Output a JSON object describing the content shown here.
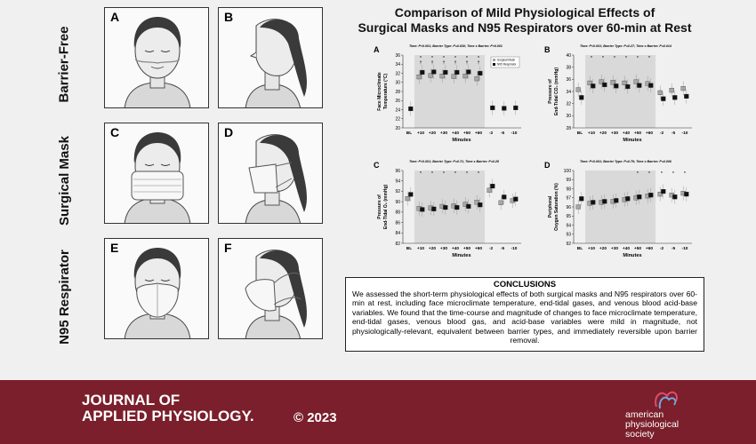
{
  "row_labels": [
    "Barrier-Free",
    "Surgical Mask",
    "N95 Respirator"
  ],
  "photo_labels": [
    "A",
    "B",
    "C",
    "D",
    "E",
    "F"
  ],
  "title_line1": "Comparison of Mild Physiological Effects of",
  "title_line2": "Surgical Masks and N95 Respirators over 60-min at Rest",
  "colors": {
    "footer": "#7a1f2b",
    "shade": "#d9d9d9",
    "surgical": "#a6a6a6",
    "n95": "#111111"
  },
  "chart_data": [
    {
      "type": "scatter",
      "panel": "A",
      "stats": "Time: P<0.001; Barrier Type: P=0.630; Time x Barrier: P<0.001",
      "ylabel_lines": [
        "Face Microclimate",
        "Temperature (°C)"
      ],
      "xlabel": "Minutes",
      "categories": [
        "BL",
        "+10",
        "+20",
        "+30",
        "+40",
        "+50",
        "+60",
        "-2",
        "-5",
        "-10"
      ],
      "ylim": [
        20,
        36
      ],
      "yticks": [
        20,
        22,
        24,
        26,
        28,
        30,
        32,
        34,
        36
      ],
      "shaded_categories": [
        "+10",
        "+60"
      ],
      "stars": [
        "+10",
        "+20",
        "+30",
        "+40",
        "+50",
        "+60"
      ],
      "daggers": [
        "+10",
        "+20",
        "+30",
        "+40",
        "+50",
        "+60"
      ],
      "legend": [
        "Surgical Mask",
        "N95 Respirator"
      ],
      "legend_position": "top-right",
      "series": [
        {
          "name": "Surgical Mask",
          "values": [
            null,
            31.2,
            31.5,
            31.4,
            31.3,
            31.4,
            30.8,
            null,
            null,
            null
          ]
        },
        {
          "name": "N95 Respirator",
          "values": [
            24.2,
            32.2,
            32.3,
            32.2,
            32.2,
            32.3,
            32.0,
            24.4,
            24.3,
            24.4
          ]
        }
      ]
    },
    {
      "type": "scatter",
      "panel": "B",
      "stats": "Time: P<0.001; Barrier Type: P=0.27; Time x Barrier: P=0.014",
      "ylabel_lines": [
        "Pressure of",
        "End-Tidal CO₂ (mmHg)"
      ],
      "xlabel": "Minutes",
      "categories": [
        "BL",
        "+10",
        "+20",
        "+30",
        "+40",
        "+50",
        "+60",
        "-2",
        "-5",
        "-10"
      ],
      "ylim": [
        28,
        40
      ],
      "yticks": [
        28,
        30,
        32,
        34,
        36,
        38,
        40
      ],
      "shaded_categories": [
        "+10",
        "+60"
      ],
      "stars": [
        "+10",
        "+20",
        "+30",
        "+40",
        "+50",
        "+60"
      ],
      "series": [
        {
          "name": "Surgical Mask",
          "values": [
            34.3,
            35.4,
            35.6,
            35.5,
            35.4,
            35.6,
            35.3,
            33.8,
            34.2,
            34.5
          ]
        },
        {
          "name": "N95 Respirator",
          "values": [
            33.0,
            34.9,
            35.1,
            34.9,
            34.8,
            35.0,
            35.0,
            32.8,
            33.0,
            33.2
          ]
        }
      ]
    },
    {
      "type": "scatter",
      "panel": "C",
      "stats": "Time: P<0.001; Barrier Type: P=0.71; Time x Barrier: P=0.28",
      "ylabel_lines": [
        "Pressure of",
        "End-Tidal O₂ (mmHg)"
      ],
      "xlabel": "Minutes",
      "categories": [
        "BL",
        "+10",
        "+20",
        "+30",
        "+40",
        "+50",
        "+60",
        "-2",
        "-5",
        "-10"
      ],
      "ylim": [
        82,
        96
      ],
      "yticks": [
        82,
        84,
        86,
        88,
        90,
        92,
        94,
        96
      ],
      "shaded_categories": [
        "+10",
        "+60"
      ],
      "stars": [
        "+10",
        "+20",
        "+30",
        "+40",
        "+50",
        "+60"
      ],
      "series": [
        {
          "name": "Surgical Mask",
          "values": [
            90.6,
            88.7,
            88.8,
            89.1,
            89.2,
            89.5,
            89.9,
            92.2,
            89.8,
            90.2
          ]
        },
        {
          "name": "N95 Respirator",
          "values": [
            91.4,
            88.5,
            88.6,
            88.9,
            88.9,
            89.1,
            89.4,
            93.0,
            90.9,
            90.5
          ]
        }
      ]
    },
    {
      "type": "scatter",
      "panel": "D",
      "stats": "Time: P<0.001; Barrier Type: P=0.79; Time x Barrier: P=0.006",
      "ylabel_lines": [
        "Peripheral",
        "Oxygen Saturation (%)"
      ],
      "xlabel": "Minutes",
      "categories": [
        "BL",
        "+10",
        "+20",
        "+30",
        "+40",
        "+50",
        "+60",
        "-2",
        "-5",
        "-10"
      ],
      "ylim": [
        92,
        100
      ],
      "yticks": [
        92,
        93,
        94,
        95,
        96,
        97,
        98,
        99,
        100
      ],
      "shaded_categories": [
        "+10",
        "+60"
      ],
      "stars": [
        "+50",
        "+60",
        "-2",
        "-5",
        "-10"
      ],
      "series": [
        {
          "name": "Surgical Mask",
          "values": [
            96.0,
            96.4,
            96.5,
            96.6,
            96.8,
            97.0,
            97.2,
            97.4,
            97.3,
            97.5
          ]
        },
        {
          "name": "N95 Respirator",
          "values": [
            96.9,
            96.5,
            96.6,
            96.7,
            96.9,
            97.1,
            97.3,
            97.7,
            97.1,
            97.4
          ]
        }
      ]
    }
  ],
  "conclusions_heading": "CONCLUSIONS",
  "conclusions_text": "We assessed the short-term physiological effects of both surgical masks and N95 respirators over 60-min at rest, including face microclimate temperature, end-tidal gases, and venous blood acid-base variables. We found that the time-course and magnitude of changes to face microclimate temperature, end-tidal gases, venous blood gas, and acid-base variables were mild in magnitude, not physiologically-relevant, equivalent between barrier types, and immediately reversible upon barrier removal.",
  "footer": {
    "journal_line1": "JOURNAL OF",
    "journal_line2": "APPLIED PHYSIOLOGY.",
    "copyright": "© 2023",
    "society_lines": [
      "american",
      "physiological",
      "society"
    ]
  }
}
